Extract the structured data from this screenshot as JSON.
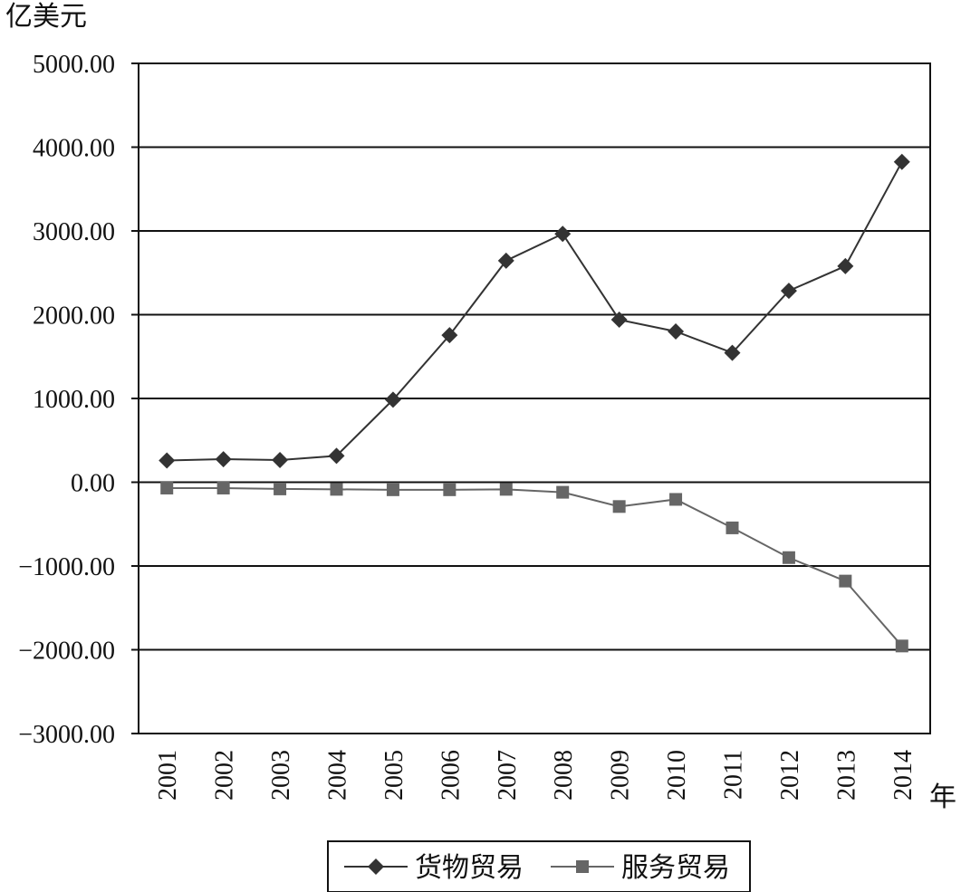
{
  "chart_data": {
    "type": "line",
    "ylabel": "亿美元",
    "xlabel": "年",
    "ylim": [
      -3000,
      5000
    ],
    "yticks": [
      "5000.00",
      "4000.00",
      "3000.00",
      "2000.00",
      "1000.00",
      "0.00",
      "−1000.00",
      "−2000.00",
      "−3000.00"
    ],
    "ytick_values": [
      5000,
      4000,
      3000,
      2000,
      1000,
      0,
      -1000,
      -2000,
      -3000
    ],
    "categories": [
      "2001",
      "2002",
      "2003",
      "2004",
      "2005",
      "2006",
      "2007",
      "2008",
      "2009",
      "2010",
      "2011",
      "2012",
      "2013",
      "2014"
    ],
    "grid": true,
    "legend_position": "bottom",
    "series": [
      {
        "name": "货物贸易",
        "marker": "diamond",
        "color": "#333333",
        "values": [
          260,
          275,
          265,
          315,
          985,
          1755,
          2645,
          2965,
          1940,
          1800,
          1545,
          2285,
          2580,
          3825
        ]
      },
      {
        "name": "服务贸易",
        "marker": "square",
        "color": "#666666",
        "values": [
          -70,
          -70,
          -80,
          -85,
          -90,
          -90,
          -85,
          -120,
          -290,
          -205,
          -545,
          -900,
          -1180,
          -1955
        ]
      }
    ]
  }
}
